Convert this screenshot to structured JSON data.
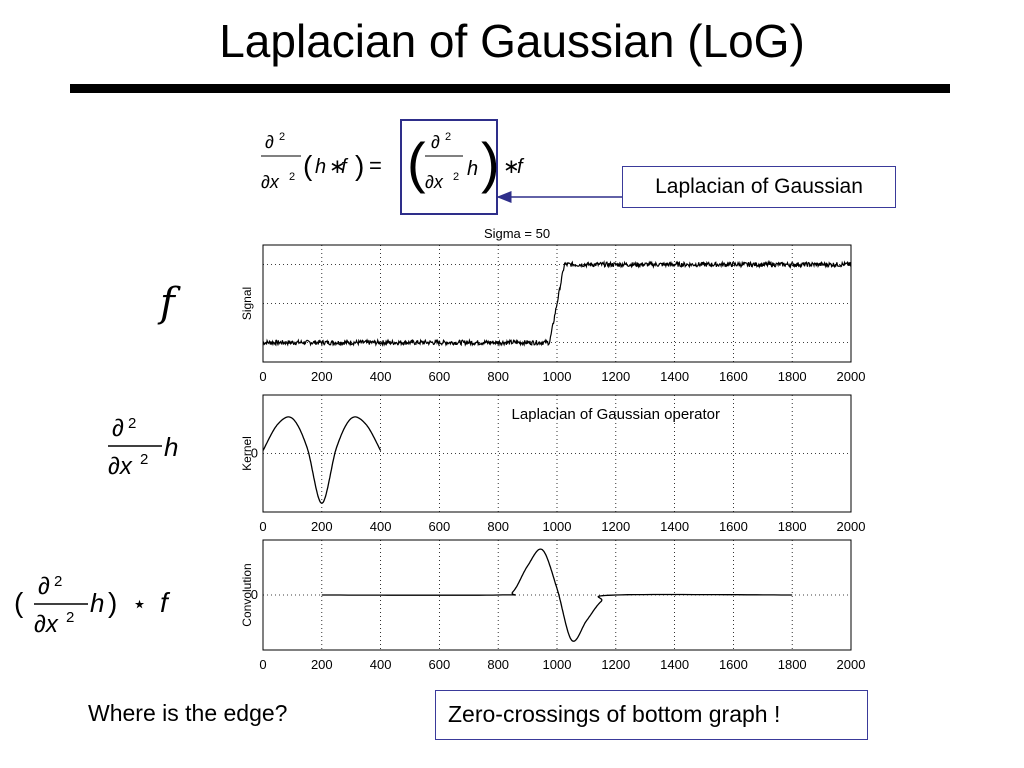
{
  "title": "Laplacian of Gaussian (LoG)",
  "callout": "Laplacian of Gaussian",
  "question": "Where is the edge?",
  "answer": "Zero-crossings of bottom graph !",
  "lhs": {
    "f": "f"
  },
  "chart_data": [
    {
      "type": "line",
      "title": "Sigma = 50",
      "ylabel": "Signal",
      "xlim": [
        0,
        2000
      ],
      "xticks": [
        0,
        200,
        400,
        600,
        800,
        1000,
        1200,
        1400,
        1600,
        1800,
        2000
      ],
      "grid": true,
      "series": [
        {
          "x": [
            0,
            975,
            1000,
            1025,
            2000
          ],
          "y": [
            0,
            0,
            0.5,
            1,
            1
          ]
        }
      ]
    },
    {
      "type": "line",
      "annotation": "Laplacian of Gaussian operator",
      "ylabel": "Kernel",
      "xlim": [
        0,
        2000
      ],
      "xticks": [
        0,
        200,
        400,
        600,
        800,
        1000,
        1200,
        1400,
        1600,
        1800,
        2000
      ],
      "yticks": [
        0
      ],
      "grid": true,
      "series": [
        {
          "x": [
            0,
            50,
            100,
            150,
            200,
            250,
            300,
            350,
            400
          ],
          "y": [
            0.05,
            0.5,
            0.6,
            0.1,
            -0.85,
            0.1,
            0.6,
            0.5,
            0.05
          ]
        }
      ]
    },
    {
      "type": "line",
      "ylabel": "Convolution",
      "xlim": [
        0,
        2000
      ],
      "xticks": [
        0,
        200,
        400,
        600,
        800,
        1000,
        1200,
        1400,
        1600,
        1800,
        2000
      ],
      "yticks": [
        0
      ],
      "grid": true,
      "series": [
        {
          "x": [
            200,
            800,
            850,
            900,
            950,
            1000,
            1050,
            1100,
            1150,
            1200,
            1800
          ],
          "y": [
            0,
            0,
            0.05,
            0.45,
            0.7,
            0.1,
            -0.7,
            -0.4,
            -0.1,
            0,
            0
          ]
        }
      ]
    }
  ]
}
